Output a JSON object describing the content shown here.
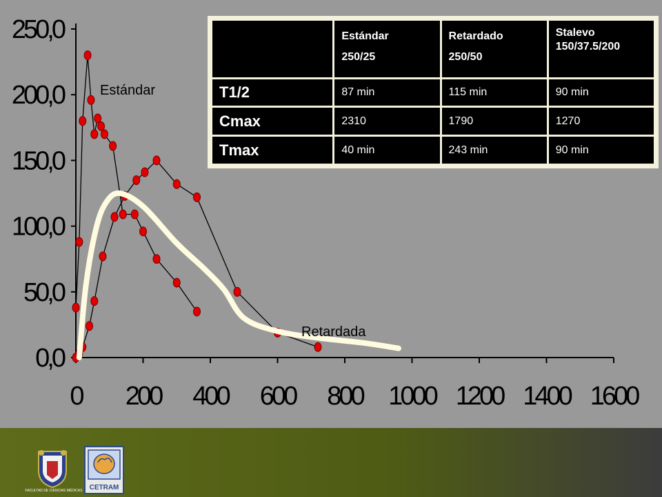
{
  "chart_data": {
    "type": "line",
    "x_ticks": [
      0,
      200,
      400,
      600,
      800,
      1000,
      1200,
      1400,
      1600
    ],
    "x_tick_labels": [
      "0",
      "200",
      "400",
      "600",
      "800",
      "1000",
      "1200",
      "1400",
      "1600"
    ],
    "y_ticks": [
      0,
      50,
      100,
      150,
      200,
      250
    ],
    "y_tick_labels": [
      "0,0",
      "50,0",
      "100,0",
      "150,0",
      "200,0",
      "250,0"
    ],
    "xlim": [
      0,
      1600
    ],
    "ylim": [
      0,
      250
    ],
    "series": [
      {
        "name": "Estándar",
        "style": "black-line-red-markers",
        "x": [
          0,
          10,
          20,
          35,
          45,
          55,
          65,
          75,
          85,
          110,
          140,
          175,
          200,
          240,
          300,
          360
        ],
        "y": [
          38,
          88,
          180,
          230,
          196,
          170,
          182,
          176,
          170,
          161,
          109,
          109,
          96,
          75,
          57,
          35
        ]
      },
      {
        "name": "Retardada",
        "style": "black-line-red-markers",
        "x": [
          0,
          10,
          20,
          40,
          55,
          80,
          115,
          145,
          180,
          205,
          240,
          300,
          360,
          480,
          600,
          720
        ],
        "y": [
          0,
          3,
          8,
          24,
          43,
          77,
          107,
          123,
          135,
          141,
          150,
          132,
          122,
          50,
          19,
          8
        ]
      },
      {
        "name": "Stalevo",
        "style": "thick-cream-line",
        "x": [
          10,
          30,
          60,
          90,
          130,
          200,
          300,
          380,
          440,
          500,
          600,
          720,
          860,
          960
        ],
        "y": [
          0,
          55,
          98,
          118,
          125,
          115,
          87,
          68,
          52,
          30,
          20,
          15,
          11,
          7
        ]
      }
    ],
    "annotations": [
      {
        "text": "Estándar",
        "series": "Estándar"
      },
      {
        "text": "Retardada",
        "series": "Retardada"
      }
    ],
    "colors": {
      "background": "#999999",
      "marker": "#e00000",
      "line": "#000000",
      "stalevo_line": "#fffbe0"
    }
  },
  "table": {
    "headers": [
      {
        "line1": "Estándar",
        "line2": "250/25"
      },
      {
        "line1": "Retardado",
        "line2": "250/50"
      },
      {
        "line1": "Stalevo",
        "line2": "150/37.5/200"
      }
    ],
    "rows": [
      {
        "label": "T1/2",
        "values": [
          "87 min",
          "115 min",
          "90 min"
        ]
      },
      {
        "label": "Cmax",
        "values": [
          "2310",
          "1790",
          "1270"
        ]
      },
      {
        "label": "Tmax",
        "values": [
          "40 min",
          "243 min",
          "90 min"
        ]
      }
    ]
  },
  "footer": {
    "logo_fcm_text": "FACULTAD DE CIENCIAS MÉDICAS",
    "logo_cetram_text": "CETRAM"
  }
}
